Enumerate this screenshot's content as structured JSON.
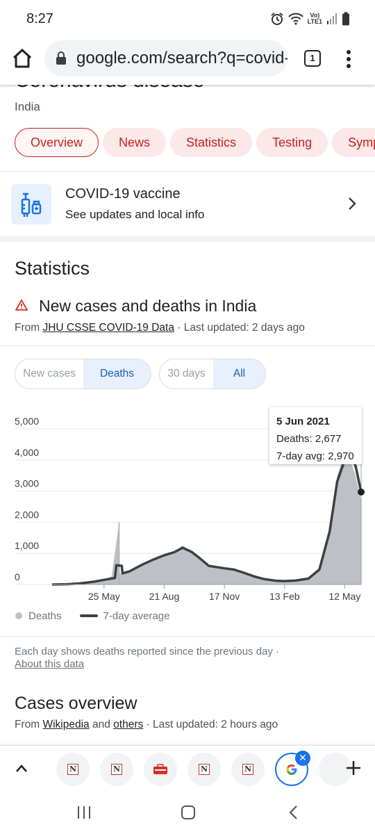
{
  "status_bar": {
    "time": "8:27",
    "network_label_top": "Vo)",
    "network_label_bottom": "LTE1"
  },
  "browser": {
    "url": "google.com/search?q=covid-",
    "tab_count": "1"
  },
  "page": {
    "clipped_title": "Coronavirus disease",
    "subtitle": "India",
    "chips": [
      "Overview",
      "News",
      "Statistics",
      "Testing",
      "Symptoms"
    ]
  },
  "vaccine": {
    "title": "COVID-19 vaccine",
    "subtitle": "See updates and local info"
  },
  "stats": {
    "heading": "Statistics",
    "chart_heading": "New cases and deaths in India",
    "source_prefix": "From ",
    "source_link": "JHU CSSE COVID-19 Data",
    "source_suffix": " · Last updated: 2 days ago",
    "toggle_metric": [
      "New cases",
      "Deaths"
    ],
    "toggle_range": [
      "30 days",
      "All"
    ]
  },
  "tooltip": {
    "date": "5 Jun 2021",
    "deaths": "Deaths: 2,677",
    "avg": "7-day avg: 2,970"
  },
  "legend": {
    "bars": "Deaths",
    "line": "7-day average"
  },
  "footnote": {
    "text": "Each day shows deaths reported since the previous day  ·",
    "link": "About this data"
  },
  "cases": {
    "heading": "Cases overview",
    "source_prefix": "From ",
    "link1": "Wikipedia",
    "middle": " and ",
    "link2": "others",
    "suffix": " · Last updated: 2 hours ago"
  },
  "colors": {
    "accent_red": "#c5221f",
    "chip_bg": "#fce8e8",
    "toggle_on": "#1a5fb4",
    "bar_fill": "#bdc1c6",
    "line": "#3c4043"
  },
  "chart_data": {
    "type": "area",
    "ylim": [
      0,
      5000
    ],
    "y_ticks": [
      "5,000",
      "4,000",
      "3,000",
      "2,000",
      "1,000",
      "0"
    ],
    "y_tick_values": [
      5000,
      4000,
      3000,
      2000,
      1000,
      0
    ],
    "x_ticks": [
      "25 May",
      "21 Aug",
      "17 Nov",
      "13 Feb",
      "12 May"
    ],
    "x_tick_dates": [
      "2020-05-25",
      "2020-08-21",
      "2020-11-17",
      "2021-02-13",
      "2021-05-12"
    ],
    "x_range": [
      "2020-03-10",
      "2021-06-05"
    ],
    "grid": true,
    "legend_position": "bottom-left",
    "series": [
      {
        "name": "Deaths",
        "kind": "daily bars",
        "points": [
          [
            "2020-03-10",
            0
          ],
          [
            "2020-04-01",
            15
          ],
          [
            "2020-04-20",
            45
          ],
          [
            "2020-05-10",
            100
          ],
          [
            "2020-05-25",
            160
          ],
          [
            "2020-06-05",
            260
          ],
          [
            "2020-06-16",
            2000
          ],
          [
            "2020-06-17",
            350
          ],
          [
            "2020-07-01",
            420
          ],
          [
            "2020-07-20",
            650
          ],
          [
            "2020-08-05",
            850
          ],
          [
            "2020-08-21",
            950
          ],
          [
            "2020-09-05",
            1050
          ],
          [
            "2020-09-17",
            1250
          ],
          [
            "2020-09-30",
            1050
          ],
          [
            "2020-10-10",
            850
          ],
          [
            "2020-10-25",
            580
          ],
          [
            "2020-11-17",
            520
          ],
          [
            "2020-12-01",
            480
          ],
          [
            "2020-12-15",
            380
          ],
          [
            "2021-01-01",
            260
          ],
          [
            "2021-01-15",
            180
          ],
          [
            "2021-02-01",
            120
          ],
          [
            "2021-02-13",
            110
          ],
          [
            "2021-03-01",
            120
          ],
          [
            "2021-03-20",
            180
          ],
          [
            "2021-04-05",
            450
          ],
          [
            "2021-04-20",
            1800
          ],
          [
            "2021-05-01",
            3500
          ],
          [
            "2021-05-12",
            4200
          ],
          [
            "2021-05-20",
            4000
          ],
          [
            "2021-05-28",
            3500
          ],
          [
            "2021-06-05",
            2677
          ]
        ]
      },
      {
        "name": "7-day average",
        "kind": "line",
        "points": [
          [
            "2020-03-10",
            0
          ],
          [
            "2020-04-01",
            10
          ],
          [
            "2020-04-20",
            35
          ],
          [
            "2020-05-10",
            90
          ],
          [
            "2020-05-25",
            150
          ],
          [
            "2020-06-10",
            210
          ],
          [
            "2020-06-12",
            620
          ],
          [
            "2020-06-20",
            600
          ],
          [
            "2020-06-21",
            360
          ],
          [
            "2020-07-01",
            420
          ],
          [
            "2020-07-20",
            640
          ],
          [
            "2020-08-05",
            800
          ],
          [
            "2020-08-21",
            940
          ],
          [
            "2020-09-05",
            1040
          ],
          [
            "2020-09-17",
            1180
          ],
          [
            "2020-09-30",
            1050
          ],
          [
            "2020-10-10",
            880
          ],
          [
            "2020-10-25",
            600
          ],
          [
            "2020-11-17",
            520
          ],
          [
            "2020-12-01",
            480
          ],
          [
            "2020-12-15",
            380
          ],
          [
            "2021-01-01",
            250
          ],
          [
            "2021-01-15",
            170
          ],
          [
            "2021-02-01",
            120
          ],
          [
            "2021-02-13",
            110
          ],
          [
            "2021-03-01",
            125
          ],
          [
            "2021-03-20",
            190
          ],
          [
            "2021-04-05",
            480
          ],
          [
            "2021-04-20",
            1700
          ],
          [
            "2021-05-01",
            3300
          ],
          [
            "2021-05-12",
            4000
          ],
          [
            "2021-05-20",
            4200
          ],
          [
            "2021-05-28",
            3800
          ],
          [
            "2021-06-05",
            2970
          ]
        ]
      }
    ],
    "highlight": {
      "date": "2021-06-05",
      "deaths": 2677,
      "avg": 2970
    }
  }
}
